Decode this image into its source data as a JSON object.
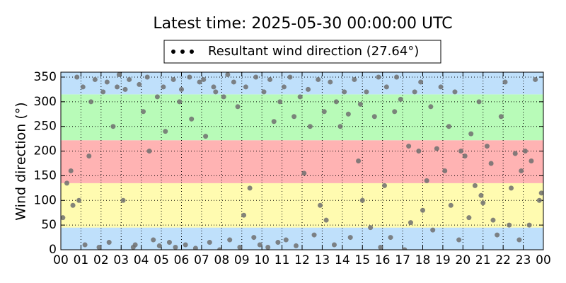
{
  "chart_data": {
    "type": "scatter",
    "title": "Latest time: 2025-05-30 00:00:00 UTC",
    "y_label": "Wind direction (°)",
    "legend": "upper center",
    "grid": true,
    "xlim": [
      0,
      24
    ],
    "ylim": [
      0,
      360
    ],
    "xticks": [
      {
        "value": 0,
        "label": "00"
      },
      {
        "value": 1,
        "label": "01"
      },
      {
        "value": 2,
        "label": "02"
      },
      {
        "value": 3,
        "label": "03"
      },
      {
        "value": 4,
        "label": "04"
      },
      {
        "value": 5,
        "label": "05"
      },
      {
        "value": 6,
        "label": "06"
      },
      {
        "value": 7,
        "label": "07"
      },
      {
        "value": 8,
        "label": "08"
      },
      {
        "value": 9,
        "label": "09"
      },
      {
        "value": 10,
        "label": "10"
      },
      {
        "value": 11,
        "label": "11"
      },
      {
        "value": 12,
        "label": "12"
      },
      {
        "value": 13,
        "label": "13"
      },
      {
        "value": 14,
        "label": "14"
      },
      {
        "value": 15,
        "label": "15"
      },
      {
        "value": 16,
        "label": "16"
      },
      {
        "value": 17,
        "label": "17"
      },
      {
        "value": 18,
        "label": "18"
      },
      {
        "value": 19,
        "label": "19"
      },
      {
        "value": 20,
        "label": "20"
      },
      {
        "value": 21,
        "label": "21"
      },
      {
        "value": 22,
        "label": "22"
      },
      {
        "value": 23,
        "label": "23"
      },
      {
        "value": 24,
        "label": "00"
      }
    ],
    "yticks": [
      0,
      50,
      100,
      150,
      200,
      250,
      300,
      350
    ],
    "bands": [
      {
        "from": 0,
        "to": 45,
        "color": "#bfe0fb"
      },
      {
        "from": 45,
        "to": 135,
        "color": "#fffbb0"
      },
      {
        "from": 135,
        "to": 222,
        "color": "#ffb3b3"
      },
      {
        "from": 222,
        "to": 315,
        "color": "#b8fbb8"
      },
      {
        "from": 315,
        "to": 360,
        "color": "#bfe0fb"
      }
    ],
    "series": [
      {
        "name": "Resultant wind direction (27.64°)",
        "color": "#6e6e6e",
        "x": [
          0.1,
          0.3,
          0.5,
          0.6,
          0.8,
          0.9,
          1.1,
          1.2,
          1.4,
          1.5,
          1.7,
          1.9,
          2.1,
          2.3,
          2.4,
          2.6,
          2.8,
          2.9,
          3.1,
          3.2,
          3.4,
          3.6,
          3.7,
          3.9,
          4.1,
          4.3,
          4.4,
          4.6,
          4.8,
          4.9,
          5.1,
          5.2,
          5.4,
          5.6,
          5.7,
          5.9,
          6.0,
          6.2,
          6.4,
          6.5,
          6.7,
          6.9,
          7.1,
          7.2,
          7.4,
          7.6,
          7.7,
          7.9,
          8.1,
          8.3,
          8.4,
          8.6,
          8.8,
          8.9,
          9.1,
          9.2,
          9.4,
          9.6,
          9.7,
          9.9,
          10.1,
          10.3,
          10.4,
          10.6,
          10.8,
          10.9,
          11.1,
          11.2,
          11.4,
          11.6,
          11.7,
          11.9,
          12.1,
          12.3,
          12.4,
          12.6,
          12.8,
          12.9,
          13.1,
          13.2,
          13.4,
          13.6,
          13.7,
          13.9,
          14.1,
          14.3,
          14.4,
          14.6,
          14.8,
          14.9,
          15.0,
          15.2,
          15.4,
          15.6,
          15.8,
          15.9,
          16.1,
          16.2,
          16.4,
          16.6,
          16.7,
          16.9,
          17.1,
          17.3,
          17.4,
          17.6,
          17.8,
          17.9,
          18.0,
          18.2,
          18.4,
          18.5,
          18.7,
          18.9,
          19.1,
          19.3,
          19.4,
          19.6,
          19.8,
          19.9,
          20.1,
          20.3,
          20.4,
          20.6,
          20.8,
          20.9,
          21.0,
          21.2,
          21.4,
          21.5,
          21.7,
          21.9,
          22.1,
          22.3,
          22.4,
          22.6,
          22.8,
          22.9,
          23.1,
          23.3,
          23.4,
          23.6,
          23.8,
          23.9
        ],
        "values": [
          65,
          135,
          160,
          90,
          350,
          100,
          330,
          10,
          190,
          300,
          345,
          5,
          320,
          340,
          15,
          250,
          330,
          355,
          100,
          325,
          345,
          5,
          10,
          335,
          280,
          350,
          200,
          20,
          310,
          8,
          330,
          240,
          15,
          345,
          5,
          300,
          325,
          10,
          350,
          265,
          3,
          340,
          345,
          230,
          15,
          330,
          320,
          0,
          310,
          355,
          20,
          340,
          290,
          5,
          70,
          330,
          125,
          25,
          350,
          10,
          320,
          5,
          345,
          260,
          15,
          300,
          330,
          20,
          350,
          270,
          8,
          310,
          155,
          325,
          250,
          30,
          345,
          90,
          280,
          60,
          340,
          10,
          300,
          250,
          320,
          275,
          25,
          345,
          180,
          295,
          100,
          320,
          45,
          270,
          350,
          5,
          130,
          330,
          25,
          280,
          350,
          305,
          0,
          210,
          55,
          320,
          200,
          340,
          80,
          140,
          290,
          40,
          205,
          330,
          160,
          250,
          90,
          320,
          20,
          200,
          190,
          65,
          235,
          130,
          300,
          110,
          95,
          210,
          175,
          60,
          30,
          270,
          340,
          50,
          125,
          195,
          20,
          160,
          200,
          50,
          180,
          345,
          100,
          115
        ]
      }
    ]
  }
}
